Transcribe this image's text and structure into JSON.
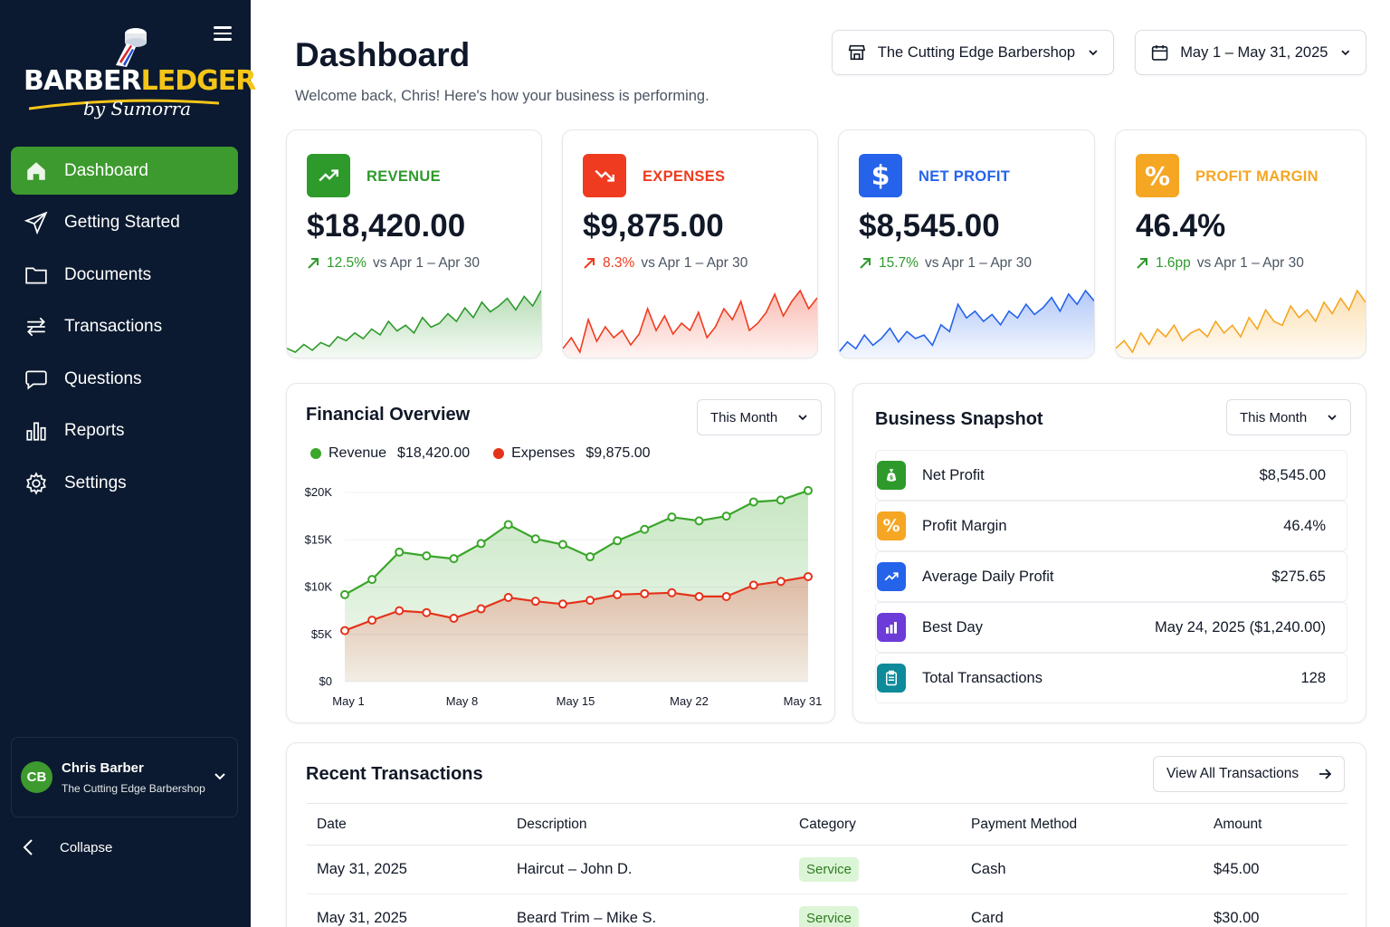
{
  "app": {
    "logo_text_a": "BARBER",
    "logo_text_b": "LEDGER",
    "logo_sub": "by Sumorra"
  },
  "sidebar": {
    "items": [
      {
        "label": "Dashboard",
        "icon": "home-icon",
        "active": true
      },
      {
        "label": "Getting Started",
        "icon": "send-icon"
      },
      {
        "label": "Documents",
        "icon": "folder-icon"
      },
      {
        "label": "Transactions",
        "icon": "arrows-icon"
      },
      {
        "label": "Questions",
        "icon": "chat-icon"
      },
      {
        "label": "Reports",
        "icon": "bar-chart-icon"
      },
      {
        "label": "Settings",
        "icon": "gear-icon"
      }
    ],
    "user": {
      "initials": "CB",
      "name": "Chris Barber",
      "business": "The Cutting Edge Barbershop"
    },
    "collapse_label": "Collapse"
  },
  "header": {
    "title": "Dashboard",
    "subtitle": "Welcome back, Chris! Here's how your business is performing.",
    "business_select": "The Cutting Edge Barbershop",
    "date_range": "May 1 – May 31, 2025"
  },
  "stats": [
    {
      "label": "REVENUE",
      "value": "$18,420.00",
      "change": "12.5%",
      "compare": "vs Apr 1 – Apr 30",
      "color": "#2e9a2b",
      "icon": "trending-up-icon",
      "spark": [
        6,
        4,
        8,
        5,
        9,
        7,
        12,
        10,
        14,
        11,
        16,
        13,
        20,
        15,
        18,
        14,
        22,
        17,
        19,
        24,
        20,
        27,
        22,
        30,
        25,
        28,
        32,
        26,
        33,
        28,
        36
      ]
    },
    {
      "label": "EXPENSES",
      "value": "$9,875.00",
      "change": "8.3%",
      "compare": "vs Apr 1 – Apr 30",
      "color": "#ef3b1f",
      "icon": "trending-down-icon",
      "spark": [
        8,
        14,
        6,
        24,
        12,
        20,
        14,
        18,
        10,
        16,
        30,
        18,
        26,
        16,
        22,
        18,
        28,
        14,
        20,
        30,
        24,
        34,
        18,
        22,
        28,
        38,
        26,
        34,
        40,
        30,
        36
      ]
    },
    {
      "label": "NET PROFIT",
      "value": "$8,545.00",
      "change": "15.7%",
      "compare": "vs Apr 1 – Apr 30",
      "color": "#2563eb",
      "icon": "dollar-icon",
      "spark": [
        6,
        12,
        8,
        16,
        10,
        14,
        20,
        12,
        18,
        14,
        16,
        10,
        22,
        18,
        34,
        26,
        30,
        24,
        28,
        22,
        30,
        26,
        34,
        28,
        32,
        38,
        30,
        40,
        34,
        42,
        36
      ]
    },
    {
      "label": "PROFIT MARGIN",
      "value": "46.4%",
      "change": "1.6pp",
      "compare": "vs Apr 1 – Apr 30",
      "color": "#f5a623",
      "icon": "percent-icon",
      "spark": [
        10,
        14,
        8,
        18,
        12,
        20,
        16,
        22,
        14,
        18,
        20,
        16,
        24,
        18,
        22,
        16,
        26,
        20,
        30,
        24,
        22,
        32,
        26,
        30,
        24,
        34,
        28,
        36,
        30,
        40,
        34
      ]
    }
  ],
  "financial_overview": {
    "title": "Financial Overview",
    "period": "This Month",
    "legend": [
      {
        "name": "Revenue",
        "value": "$18,420.00",
        "color": "#3aa62a"
      },
      {
        "name": "Expenses",
        "value": "$9,875.00",
        "color": "#e5321b"
      }
    ]
  },
  "chart_data": {
    "type": "area",
    "ylim": [
      0,
      20000
    ],
    "yticks": [
      "$0",
      "$5K",
      "$10K",
      "$15K",
      "$20K"
    ],
    "xtick_labels": [
      "May 1",
      "May 8",
      "May 15",
      "May 22",
      "May 31"
    ],
    "series": [
      {
        "name": "Revenue",
        "color": "#3aa62a",
        "values": [
          9200,
          10800,
          13700,
          13300,
          13000,
          14600,
          16600,
          15100,
          14500,
          13200,
          14900,
          16100,
          17400,
          17000,
          17500,
          19000,
          19200,
          20200
        ]
      },
      {
        "name": "Expenses",
        "color": "#e5321b",
        "values": [
          5400,
          6500,
          7500,
          7300,
          6700,
          7700,
          8900,
          8500,
          8200,
          8600,
          9200,
          9300,
          9400,
          9000,
          9000,
          10200,
          10600,
          11100
        ]
      }
    ]
  },
  "snapshot": {
    "title": "Business Snapshot",
    "period": "This Month",
    "rows": [
      {
        "label": "Net Profit",
        "value": "$8,545.00",
        "color": "#2e9a2b",
        "icon": "money-bag-icon"
      },
      {
        "label": "Profit Margin",
        "value": "46.4%",
        "color": "#f5a623",
        "icon": "percent-icon"
      },
      {
        "label": "Average Daily Profit",
        "value": "$275.65",
        "color": "#2563eb",
        "icon": "trending-up-icon"
      },
      {
        "label": "Best Day",
        "value": "May 24, 2025 ($1,240.00)",
        "color": "#6d3bd8",
        "icon": "bar-chart-icon"
      },
      {
        "label": "Total Transactions",
        "value": "128",
        "color": "#0e8a9a",
        "icon": "clipboard-icon"
      }
    ]
  },
  "transactions": {
    "title": "Recent Transactions",
    "view_all": "View All Transactions",
    "columns": [
      "Date",
      "Description",
      "Category",
      "Payment Method",
      "Amount"
    ],
    "rows": [
      {
        "date": "May 31, 2025",
        "description": "Haircut – John D.",
        "category": "Service",
        "method": "Cash",
        "amount": "$45.00"
      },
      {
        "date": "May 31, 2025",
        "description": "Beard Trim – Mike S.",
        "category": "Service",
        "method": "Card",
        "amount": "$30.00"
      }
    ]
  }
}
